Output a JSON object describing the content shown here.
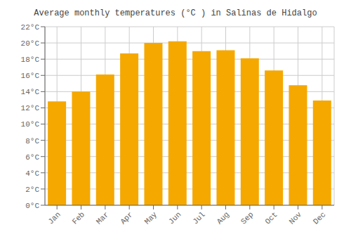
{
  "chart_data": {
    "type": "bar",
    "title": "Average monthly temperatures (°C ) in Salinas de Hidalgo",
    "categories": [
      "Jan",
      "Feb",
      "Mar",
      "Apr",
      "May",
      "Jun",
      "Jul",
      "Aug",
      "Sep",
      "Oct",
      "Nov",
      "Dec"
    ],
    "values": [
      12.8,
      14.0,
      16.1,
      18.7,
      20.0,
      20.2,
      19.0,
      19.1,
      18.1,
      16.6,
      14.8,
      12.9
    ],
    "color": "#F5A800",
    "ylim": [
      0,
      22
    ],
    "yticks": [
      {
        "value": 0,
        "label": "0°C"
      },
      {
        "value": 2,
        "label": "2°C"
      },
      {
        "value": 4,
        "label": "4°C"
      },
      {
        "value": 6,
        "label": "6°C"
      },
      {
        "value": 8,
        "label": "8°C"
      },
      {
        "value": 10,
        "label": "10°C"
      },
      {
        "value": 12,
        "label": "12°C"
      },
      {
        "value": 14,
        "label": "14°C"
      },
      {
        "value": 16,
        "label": "16°C"
      },
      {
        "value": 18,
        "label": "18°C"
      },
      {
        "value": 20,
        "label": "20°C"
      },
      {
        "value": 22,
        "label": "22°C"
      }
    ],
    "grid": true
  }
}
